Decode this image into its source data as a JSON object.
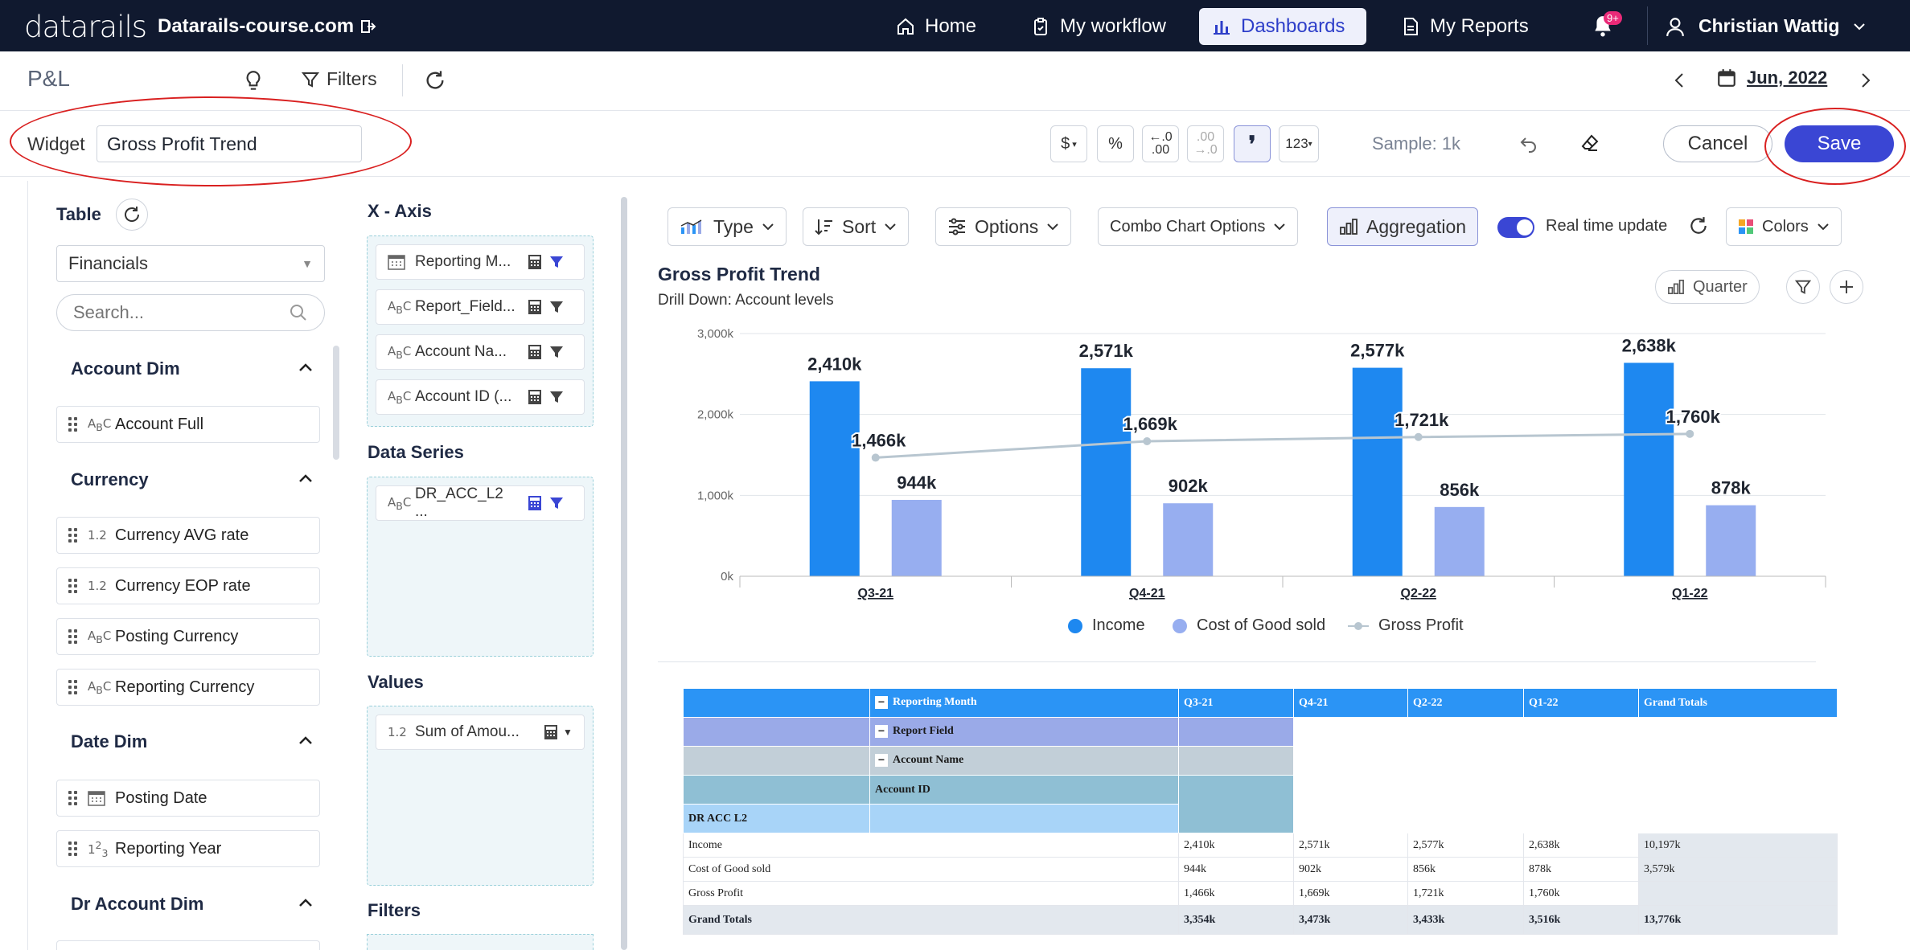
{
  "topnav": {
    "logo": "datarails",
    "domain": "Datarails-course.com",
    "items": [
      {
        "label": "Home",
        "icon": "home-icon"
      },
      {
        "label": "My workflow",
        "icon": "clipboard-icon"
      },
      {
        "label": "Dashboards",
        "icon": "bar-chart-icon"
      },
      {
        "label": "My Reports",
        "icon": "document-icon"
      }
    ],
    "notification_badge": "9+",
    "user_name": "Christian Wattig"
  },
  "subbar": {
    "title": "P&L",
    "filters_label": "Filters",
    "date": "Jun, 2022"
  },
  "widgetbar": {
    "widget_label": "Widget",
    "widget_name": "Gross Profit Trend",
    "format_buttons": [
      "$",
      "%",
      "←.0\n.00",
      ".00\n→.0",
      "❜",
      "123"
    ],
    "sample": "Sample: 1k",
    "cancel_label": "Cancel",
    "save_label": "Save"
  },
  "left": {
    "table_label": "Table",
    "table_select": "Financials",
    "search_placeholder": "Search...",
    "sections": [
      {
        "title": "Account Dim",
        "fields": [
          {
            "type": "ABC",
            "label": "Account Full"
          }
        ]
      },
      {
        "title": "Currency",
        "fields": [
          {
            "type": "1.2",
            "label": "Currency AVG rate"
          },
          {
            "type": "1.2",
            "label": "Currency EOP rate"
          },
          {
            "type": "ABC",
            "label": "Posting Currency"
          },
          {
            "type": "ABC",
            "label": "Reporting Currency"
          }
        ]
      },
      {
        "title": "Date Dim",
        "fields": [
          {
            "type": "cal",
            "label": "Posting Date"
          },
          {
            "type": "123",
            "label": "Reporting Year"
          }
        ]
      },
      {
        "title": "Dr Account Dim",
        "fields": []
      }
    ],
    "xaxis_title": "X - Axis",
    "xaxis_items": [
      "Reporting M...",
      "Report_Field...",
      "Account Na...",
      "Account ID (..."
    ],
    "dataseries_title": "Data Series",
    "dataseries_items": [
      "DR_ACC_L2 ..."
    ],
    "values_title": "Values",
    "values_items": [
      "Sum of Amou..."
    ],
    "filters_title": "Filters"
  },
  "toolbar": {
    "type_label": "Type",
    "sort_label": "Sort",
    "options_label": "Options",
    "combo_label": "Combo Chart Options",
    "aggregation_label": "Aggregation",
    "realtime_label": "Real time update",
    "colors_label": "Colors",
    "quarter_label": "Quarter"
  },
  "chart_data": {
    "type": "bar",
    "title": "Gross Profit Trend",
    "subtitle": "Drill Down: Account levels",
    "categories": [
      "Q3-21",
      "Q4-21",
      "Q2-22",
      "Q1-22"
    ],
    "yticks": [
      "3,000k",
      "2,000k",
      "1,000k",
      "0k"
    ],
    "ylim": [
      0,
      3000
    ],
    "series": [
      {
        "name": "Income",
        "kind": "bar",
        "color": "#1e88f0",
        "values": [
          2410,
          2571,
          2577,
          2638
        ],
        "labels": [
          "2,410k",
          "2,571k",
          "2,577k",
          "2,638k"
        ]
      },
      {
        "name": "Cost of Good sold",
        "kind": "bar",
        "color": "#97aef0",
        "values": [
          944,
          902,
          856,
          878
        ],
        "labels": [
          "944k",
          "902k",
          "856k",
          "878k"
        ]
      },
      {
        "name": "Gross Profit",
        "kind": "line",
        "color": "#b8c6d0",
        "values": [
          1466,
          1669,
          1721,
          1760
        ],
        "labels": [
          "1,466k",
          "1,669k",
          "1,721k",
          "1,760k"
        ]
      }
    ]
  },
  "pivot": {
    "header_labels": [
      "Reporting Month",
      "Report Field",
      "Account Name",
      "Account ID",
      "DR ACC L2"
    ],
    "columns": [
      "Q3-21",
      "Q4-21",
      "Q2-22",
      "Q1-22",
      "Grand Totals"
    ],
    "rows": [
      {
        "label": "Income",
        "values": [
          "2,410k",
          "2,571k",
          "2,577k",
          "2,638k",
          "10,197k"
        ]
      },
      {
        "label": "Cost of Good sold",
        "values": [
          "944k",
          "902k",
          "856k",
          "878k",
          "3,579k"
        ]
      },
      {
        "label": "Gross Profit",
        "values": [
          "1,466k",
          "1,669k",
          "1,721k",
          "1,760k",
          ""
        ]
      },
      {
        "label": "Grand Totals",
        "values": [
          "3,354k",
          "3,473k",
          "3,433k",
          "3,516k",
          "13,776k"
        ]
      }
    ]
  }
}
